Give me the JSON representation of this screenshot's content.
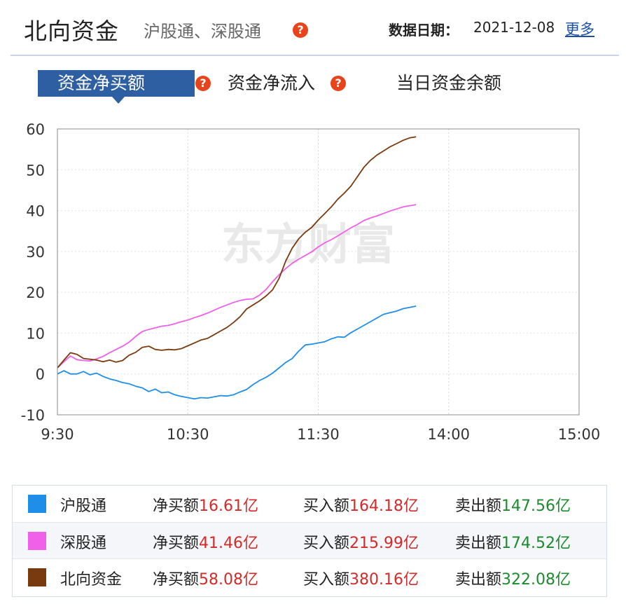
{
  "header": {
    "title": "北向资金",
    "subtitle": "沪股通、深股通",
    "help_glyph": "?",
    "date_label": "数据日期：",
    "date_value": "2021-12-08",
    "more_label": "更多"
  },
  "tabs": [
    {
      "label": "资金净买额",
      "active": true
    },
    {
      "label": "资金净流入",
      "active": false
    },
    {
      "label": "当日资金余额",
      "active": false
    }
  ],
  "watermark": "东方财富",
  "chart_data": {
    "type": "line",
    "x_ticks": [
      "9:30",
      "10:30",
      "11:30",
      "14:00",
      "15:00"
    ],
    "y_ticks": [
      60,
      50,
      40,
      30,
      20,
      10,
      0,
      -10
    ],
    "ylim": [
      -10,
      60
    ],
    "x_unit": "trading minutes from 9:30 (0-240)",
    "grid": true,
    "series": [
      {
        "name": "沪股通",
        "color": "#1f8ee8",
        "points": [
          [
            0,
            0
          ],
          [
            3,
            0.8
          ],
          [
            6,
            0
          ],
          [
            9,
            0
          ],
          [
            12,
            0.6
          ],
          [
            15,
            -0.2
          ],
          [
            18,
            0.2
          ],
          [
            21,
            -0.6
          ],
          [
            24,
            -1.2
          ],
          [
            27,
            -1.6
          ],
          [
            30,
            -2.1
          ],
          [
            33,
            -2.4
          ],
          [
            36,
            -3
          ],
          [
            39,
            -3.4
          ],
          [
            42,
            -4.3
          ],
          [
            45,
            -3.7
          ],
          [
            48,
            -4.6
          ],
          [
            51,
            -4.4
          ],
          [
            54,
            -5.1
          ],
          [
            57,
            -5.5
          ],
          [
            60,
            -5.8
          ],
          [
            63,
            -6.1
          ],
          [
            66,
            -5.8
          ],
          [
            69,
            -5.9
          ],
          [
            72,
            -5.6
          ],
          [
            75,
            -5.3
          ],
          [
            78,
            -5.4
          ],
          [
            81,
            -5.1
          ],
          [
            84,
            -4.4
          ],
          [
            87,
            -3.8
          ],
          [
            90,
            -2.6
          ],
          [
            93,
            -1.6
          ],
          [
            96,
            -0.8
          ],
          [
            99,
            0.2
          ],
          [
            102,
            1.5
          ],
          [
            105,
            2.8
          ],
          [
            108,
            3.8
          ],
          [
            111,
            5.6
          ],
          [
            114,
            7.1
          ],
          [
            117,
            7.3
          ],
          [
            120,
            7.6
          ],
          [
            123,
            7.9
          ],
          [
            126,
            8.6
          ],
          [
            129,
            9.1
          ],
          [
            132,
            9.0
          ],
          [
            135,
            10.1
          ],
          [
            138,
            11.0
          ],
          [
            141,
            11.9
          ],
          [
            144,
            12.8
          ],
          [
            147,
            13.7
          ],
          [
            150,
            14.6
          ],
          [
            153,
            15.0
          ],
          [
            156,
            15.4
          ],
          [
            159,
            16.0
          ],
          [
            162,
            16.3
          ],
          [
            165,
            16.61
          ]
        ]
      },
      {
        "name": "深股通",
        "color": "#f060e8",
        "points": [
          [
            0,
            1.5
          ],
          [
            3,
            3.0
          ],
          [
            6,
            4.4
          ],
          [
            9,
            3.5
          ],
          [
            12,
            3.3
          ],
          [
            15,
            3.2
          ],
          [
            18,
            3.7
          ],
          [
            21,
            4.3
          ],
          [
            24,
            5.2
          ],
          [
            27,
            6.0
          ],
          [
            30,
            6.8
          ],
          [
            33,
            7.8
          ],
          [
            36,
            9.2
          ],
          [
            39,
            10.4
          ],
          [
            42,
            10.9
          ],
          [
            45,
            11.3
          ],
          [
            48,
            11.7
          ],
          [
            51,
            11.9
          ],
          [
            54,
            12.3
          ],
          [
            57,
            12.8
          ],
          [
            60,
            13.2
          ],
          [
            63,
            13.8
          ],
          [
            66,
            14.3
          ],
          [
            69,
            14.9
          ],
          [
            72,
            15.6
          ],
          [
            75,
            16.3
          ],
          [
            78,
            16.9
          ],
          [
            81,
            17.5
          ],
          [
            84,
            18.0
          ],
          [
            87,
            18.3
          ],
          [
            90,
            18.4
          ],
          [
            93,
            19.3
          ],
          [
            96,
            20.7
          ],
          [
            99,
            22.6
          ],
          [
            102,
            24.3
          ],
          [
            105,
            25.8
          ],
          [
            108,
            27.1
          ],
          [
            111,
            28.1
          ],
          [
            114,
            29.0
          ],
          [
            117,
            29.9
          ],
          [
            120,
            31.1
          ],
          [
            123,
            32.1
          ],
          [
            126,
            32.9
          ],
          [
            129,
            33.8
          ],
          [
            132,
            34.8
          ],
          [
            135,
            35.8
          ],
          [
            138,
            36.6
          ],
          [
            141,
            37.6
          ],
          [
            144,
            38.2
          ],
          [
            147,
            38.7
          ],
          [
            150,
            39.3
          ],
          [
            153,
            39.9
          ],
          [
            156,
            40.4
          ],
          [
            159,
            40.9
          ],
          [
            162,
            41.2
          ],
          [
            165,
            41.46
          ]
        ]
      },
      {
        "name": "北向资金",
        "color": "#7a3a0f",
        "points": [
          [
            0,
            1.5
          ],
          [
            3,
            3.4
          ],
          [
            6,
            5.2
          ],
          [
            9,
            4.8
          ],
          [
            12,
            3.8
          ],
          [
            15,
            3.6
          ],
          [
            18,
            3.4
          ],
          [
            21,
            3.0
          ],
          [
            24,
            3.4
          ],
          [
            27,
            2.9
          ],
          [
            30,
            3.3
          ],
          [
            33,
            4.6
          ],
          [
            36,
            5.3
          ],
          [
            39,
            6.5
          ],
          [
            42,
            6.8
          ],
          [
            45,
            6.0
          ],
          [
            48,
            5.8
          ],
          [
            51,
            6.0
          ],
          [
            54,
            5.9
          ],
          [
            57,
            6.2
          ],
          [
            60,
            6.9
          ],
          [
            63,
            7.6
          ],
          [
            66,
            8.3
          ],
          [
            69,
            8.7
          ],
          [
            72,
            9.6
          ],
          [
            75,
            10.5
          ],
          [
            78,
            11.4
          ],
          [
            81,
            12.6
          ],
          [
            84,
            14.0
          ],
          [
            87,
            15.9
          ],
          [
            90,
            16.9
          ],
          [
            93,
            17.9
          ],
          [
            96,
            19.1
          ],
          [
            99,
            20.6
          ],
          [
            102,
            23.4
          ],
          [
            105,
            27.6
          ],
          [
            108,
            30.8
          ],
          [
            111,
            33.1
          ],
          [
            114,
            34.7
          ],
          [
            117,
            35.9
          ],
          [
            120,
            37.7
          ],
          [
            123,
            39.3
          ],
          [
            126,
            40.9
          ],
          [
            129,
            42.8
          ],
          [
            132,
            44.3
          ],
          [
            135,
            46.0
          ],
          [
            138,
            48.3
          ],
          [
            141,
            50.6
          ],
          [
            144,
            52.3
          ],
          [
            147,
            53.6
          ],
          [
            150,
            54.6
          ],
          [
            153,
            55.6
          ],
          [
            156,
            56.4
          ],
          [
            159,
            57.2
          ],
          [
            162,
            57.8
          ],
          [
            165,
            58.08
          ]
        ]
      }
    ]
  },
  "legend": [
    {
      "name": "沪股通",
      "color": "#1f8ee8",
      "net_label": "净买额",
      "net_value": "16.61亿",
      "buy_label": "买入额",
      "buy_value": "164.18亿",
      "sell_label": "卖出额",
      "sell_value": "147.56亿"
    },
    {
      "name": "深股通",
      "color": "#f060e8",
      "net_label": "净买额",
      "net_value": "41.46亿",
      "buy_label": "买入额",
      "buy_value": "215.99亿",
      "sell_label": "卖出额",
      "sell_value": "174.52亿"
    },
    {
      "name": "北向资金",
      "color": "#7a3a0f",
      "net_label": "净买额",
      "net_value": "58.08亿",
      "buy_label": "买入额",
      "buy_value": "380.16亿",
      "sell_label": "卖出额",
      "sell_value": "322.08亿"
    }
  ]
}
